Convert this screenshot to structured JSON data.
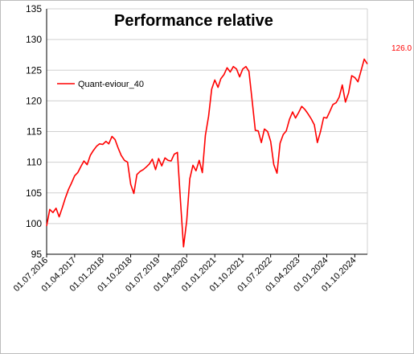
{
  "chart_data": {
    "type": "line",
    "title": "Performance relative",
    "xlabel": "",
    "ylabel": "",
    "ylim": [
      95,
      135
    ],
    "y_ticks": [
      "95",
      "100",
      "105",
      "110",
      "115",
      "120",
      "125",
      "130",
      "135"
    ],
    "x_tick_labels": [
      "01.07.2016",
      "01.04.2017",
      "01.01.2018",
      "01.10.2018",
      "01.07.2019",
      "01.04.2020",
      "01.01.2021",
      "01.10.2021",
      "01.07.2022",
      "01.04.2023",
      "01.01.2024",
      "01.10.2024"
    ],
    "legend": {
      "placement": "top-left",
      "entries": [
        "Quant-eviour_40"
      ]
    },
    "last_value_label": "126.0",
    "grid": "horizontal",
    "color": "#ff0000",
    "series": [
      {
        "name": "Quant-eviour_40",
        "x": [
          "2016-07-01",
          "2016-08-01",
          "2016-09-01",
          "2016-10-01",
          "2016-11-01",
          "2016-12-01",
          "2017-01-01",
          "2017-02-01",
          "2017-03-01",
          "2017-04-01",
          "2017-05-01",
          "2017-06-01",
          "2017-07-01",
          "2017-08-01",
          "2017-09-01",
          "2017-10-01",
          "2017-11-01",
          "2017-12-01",
          "2018-01-01",
          "2018-02-01",
          "2018-03-01",
          "2018-04-01",
          "2018-05-01",
          "2018-06-01",
          "2018-07-01",
          "2018-08-01",
          "2018-09-01",
          "2018-10-01",
          "2018-11-01",
          "2018-12-01",
          "2019-01-01",
          "2019-02-01",
          "2019-03-01",
          "2019-04-01",
          "2019-05-01",
          "2019-06-01",
          "2019-07-01",
          "2019-08-01",
          "2019-09-01",
          "2019-10-01",
          "2019-11-01",
          "2019-12-01",
          "2020-01-01",
          "2020-02-01",
          "2020-03-01",
          "2020-04-01",
          "2020-05-01",
          "2020-06-01",
          "2020-07-01",
          "2020-08-01",
          "2020-09-01",
          "2020-10-01",
          "2020-11-01",
          "2020-12-01",
          "2021-01-01",
          "2021-02-01",
          "2021-03-01",
          "2021-04-01",
          "2021-05-01",
          "2021-06-01",
          "2021-07-01",
          "2021-08-01",
          "2021-09-01",
          "2021-10-01",
          "2021-11-01",
          "2021-12-01",
          "2022-01-01",
          "2022-02-01",
          "2022-03-01",
          "2022-04-01",
          "2022-05-01",
          "2022-06-01",
          "2022-07-01",
          "2022-08-01",
          "2022-09-01",
          "2022-10-01",
          "2022-11-01",
          "2022-12-01",
          "2023-01-01",
          "2023-02-01",
          "2023-03-01",
          "2023-04-01",
          "2023-05-01",
          "2023-06-01",
          "2023-07-01",
          "2023-08-01",
          "2023-09-01",
          "2023-10-01",
          "2023-11-01",
          "2023-12-01",
          "2024-01-01",
          "2024-02-01",
          "2024-03-01",
          "2024-04-01",
          "2024-05-01",
          "2024-06-01",
          "2024-07-01",
          "2024-08-01",
          "2024-09-01",
          "2024-10-01",
          "2024-11-01",
          "2024-12-01",
          "2025-01-01",
          "2025-02-01"
        ],
        "values": [
          99.6,
          102.3,
          101.8,
          102.5,
          101.1,
          102.6,
          104.2,
          105.6,
          106.6,
          107.8,
          108.3,
          109.3,
          110.2,
          109.6,
          111.1,
          111.9,
          112.6,
          113.0,
          112.9,
          113.4,
          113.0,
          114.2,
          113.7,
          112.3,
          111.1,
          110.3,
          110.0,
          106.4,
          104.9,
          108.0,
          108.5,
          108.8,
          109.2,
          109.7,
          110.5,
          108.8,
          110.6,
          109.4,
          110.7,
          110.3,
          110.2,
          111.3,
          111.6,
          103.5,
          96.2,
          100.5,
          107.3,
          109.5,
          108.6,
          110.3,
          108.3,
          114.4,
          117.5,
          121.9,
          123.4,
          122.2,
          123.6,
          124.3,
          125.4,
          124.7,
          125.6,
          125.2,
          123.9,
          125.2,
          125.6,
          124.8,
          120.0,
          115.2,
          115.1,
          113.2,
          115.4,
          115.0,
          113.4,
          109.6,
          108.2,
          113.1,
          114.5,
          115.1,
          117.0,
          118.2,
          117.2,
          118.1,
          119.1,
          118.6,
          117.9,
          117.1,
          116.1,
          113.2,
          115.0,
          117.3,
          117.2,
          118.3,
          119.4,
          119.7,
          120.6,
          122.6,
          119.8,
          121.3,
          124.1,
          123.8,
          123.1,
          124.9,
          126.8,
          126.0
        ]
      }
    ]
  }
}
